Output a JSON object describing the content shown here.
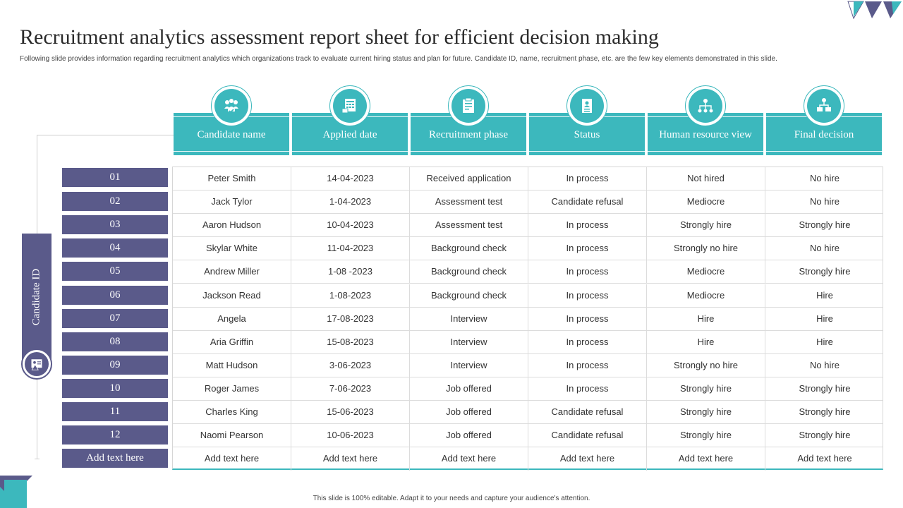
{
  "title": "Recruitment analytics assessment report sheet for efficient decision making",
  "subtitle": "Following slide provides information regarding recruitment analytics which organizations track to evaluate current hiring status and plan  for future. Candidate ID,  name,  recruitment phase, etc. are the  few key elements demonstrated in  this slide.",
  "footer": "This slide is 100% editable.  Adapt it to your needs and capture your audience's attention.",
  "side_label": "Candidate ID",
  "colors": {
    "teal": "#3cb8bd",
    "purple": "#5a5a8a"
  },
  "headers": [
    {
      "label": "Candidate name",
      "icon": "people-check-icon"
    },
    {
      "label": "Applied date",
      "icon": "calendar-icon"
    },
    {
      "label": "Recruitment phase",
      "icon": "document-checklist-icon"
    },
    {
      "label": "Status",
      "icon": "clipboard-person-icon"
    },
    {
      "label": "Human resource view",
      "icon": "org-hierarchy-icon"
    },
    {
      "label": "Final decision",
      "icon": "decision-network-icon"
    }
  ],
  "rows": [
    {
      "id": "01",
      "cells": [
        "Peter Smith",
        "14-04-2023",
        "Received  application",
        "In process",
        "Not hired",
        "No hire"
      ]
    },
    {
      "id": "02",
      "cells": [
        "Jack Tylor",
        "1-04-2023",
        "Assessment test",
        "Candidate  refusal",
        "Mediocre",
        "No hire"
      ]
    },
    {
      "id": "03",
      "cells": [
        "Aaron Hudson",
        "10-04-2023",
        "Assessment test",
        "In process",
        "Strongly hire",
        "Strongly hire"
      ]
    },
    {
      "id": "04",
      "cells": [
        "Skylar White",
        "11-04-2023",
        "Background check",
        "In process",
        "Strongly no hire",
        "No hire"
      ]
    },
    {
      "id": "05",
      "cells": [
        "Andrew Miller",
        "1-08 -2023",
        "Background check",
        "In process",
        "Mediocre",
        "Strongly hire"
      ]
    },
    {
      "id": "06",
      "cells": [
        "Jackson Read",
        "1-08-2023",
        "Background check",
        "In process",
        "Mediocre",
        "Hire"
      ]
    },
    {
      "id": "07",
      "cells": [
        "Angela",
        "17-08-2023",
        "Interview",
        "In process",
        "Hire",
        "Hire"
      ]
    },
    {
      "id": "08",
      "cells": [
        "Aria Griffin",
        "15-08-2023",
        "Interview",
        "In process",
        "Hire",
        "Hire"
      ]
    },
    {
      "id": "09",
      "cells": [
        "Matt Hudson",
        "3-06-2023",
        "Interview",
        "In process",
        "Strongly no hire",
        "No hire"
      ]
    },
    {
      "id": "10",
      "cells": [
        "Roger James",
        "7-06-2023",
        "Job offered",
        "In process",
        "Strongly hire",
        "Strongly hire"
      ]
    },
    {
      "id": "11",
      "cells": [
        "Charles King",
        "15-06-2023",
        "Job offered",
        "Candidate  refusal",
        "Strongly hire",
        "Strongly hire"
      ]
    },
    {
      "id": "12",
      "cells": [
        "Naomi Pearson",
        "10-06-2023",
        "Job offered",
        "Candidate  refusal",
        "Strongly hire",
        "Strongly hire"
      ]
    },
    {
      "id": "Add text here",
      "cells": [
        "Add text here",
        "Add text here",
        "Add text here",
        "Add text here",
        "Add text here",
        "Add text here"
      ]
    }
  ]
}
